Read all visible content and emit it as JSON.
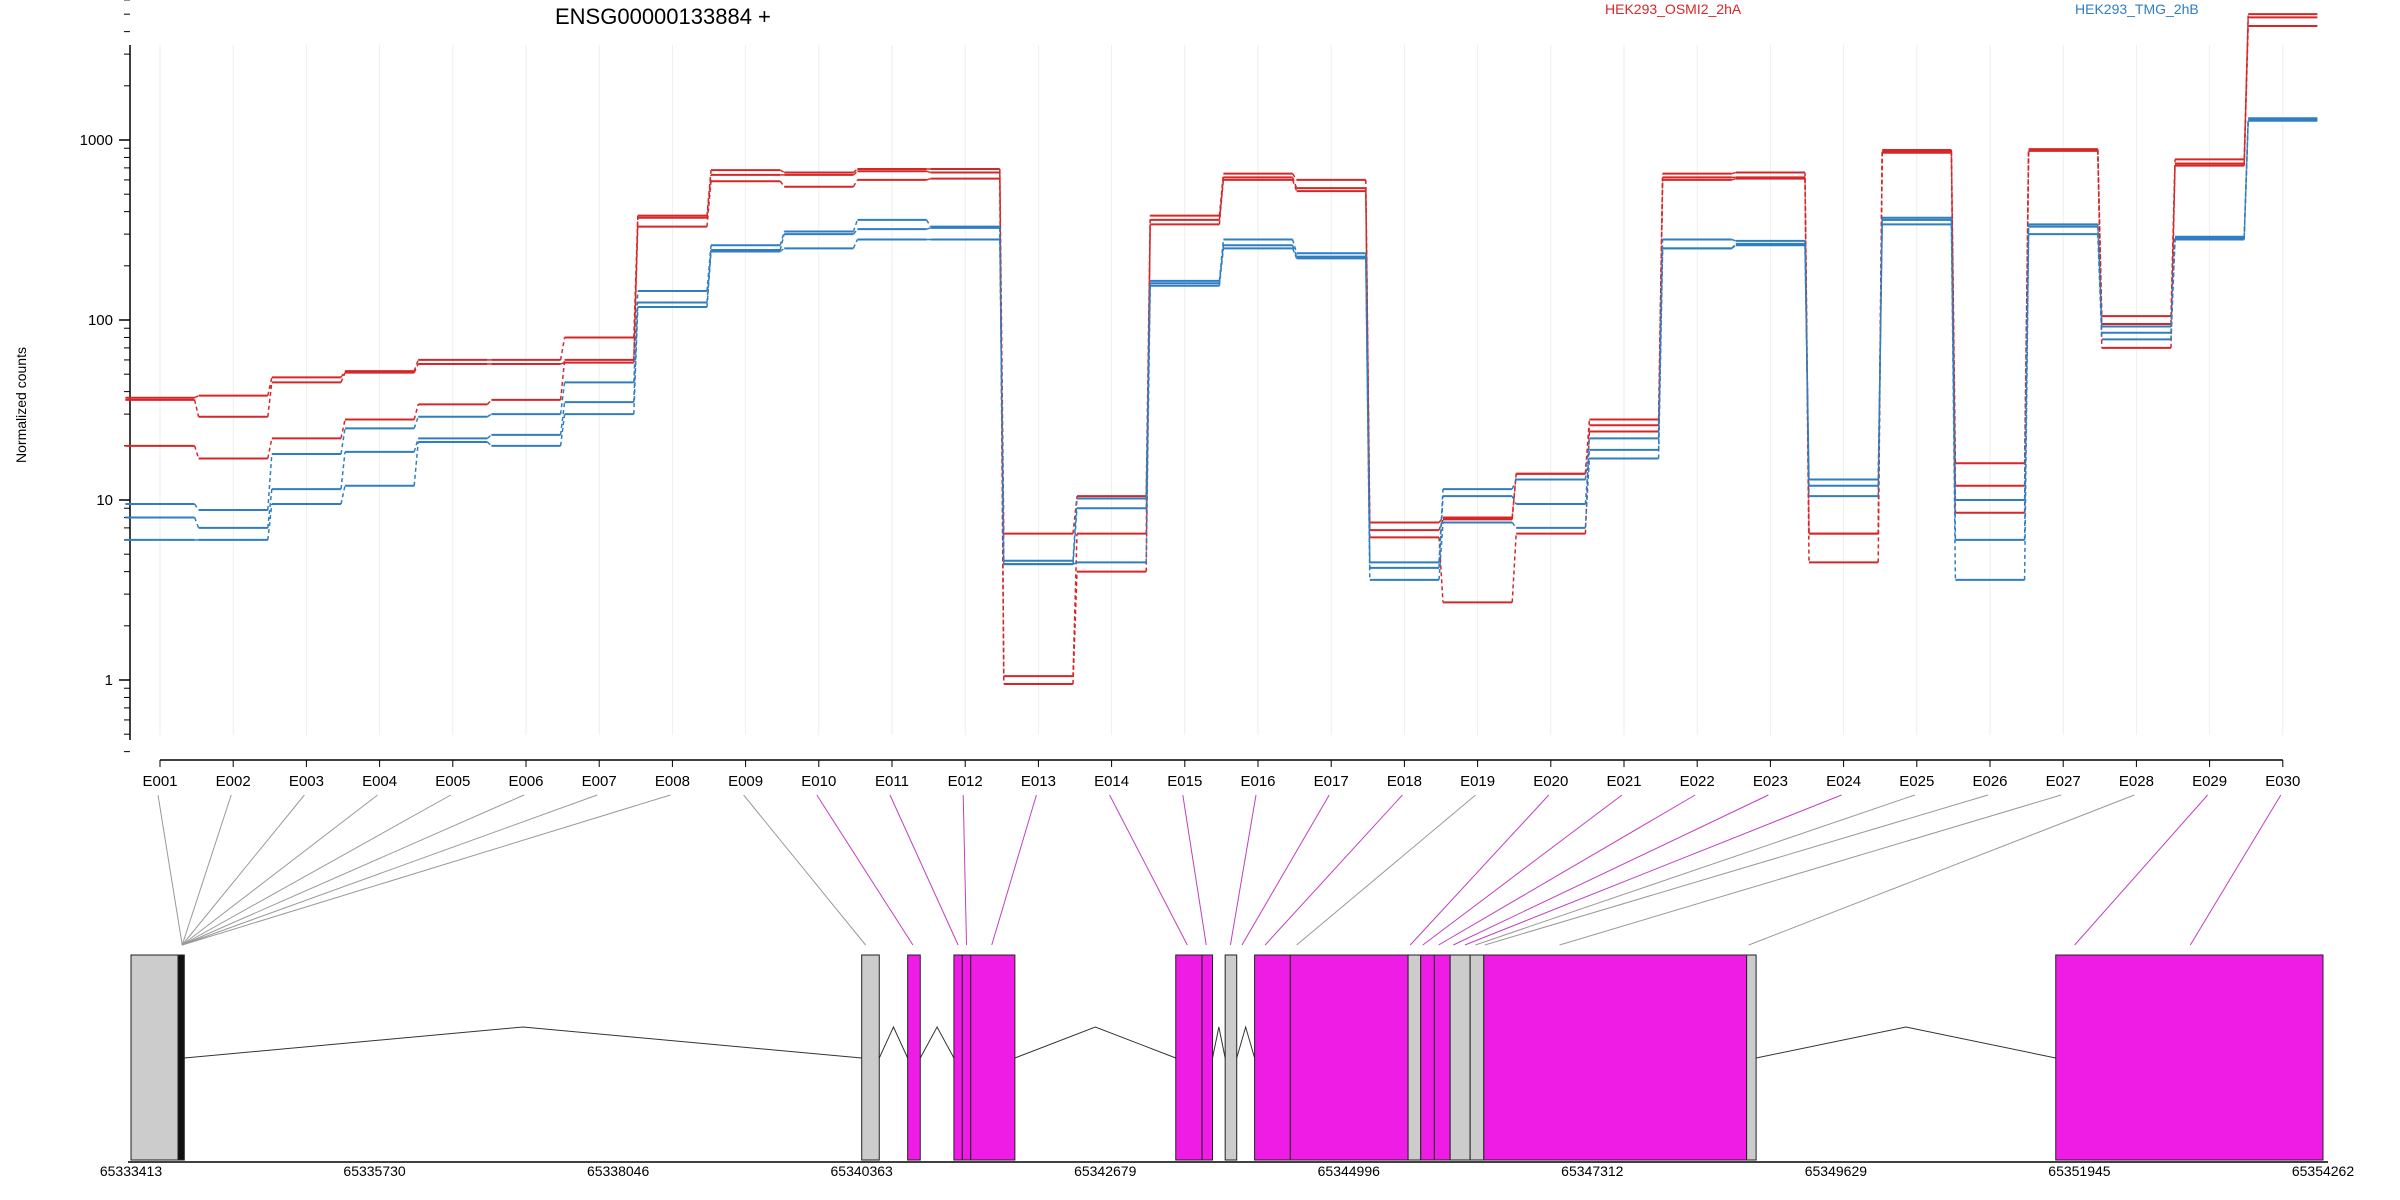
{
  "header": {
    "gene_title": "ENSG00000133884 +",
    "legend": [
      {
        "label": "HEK293_OSMI2_2hA",
        "color": "#d62728"
      },
      {
        "label": "HEK293_TMG_2hB",
        "color": "#2f7ec1"
      }
    ]
  },
  "chart_data": {
    "type": "line",
    "title": "ENSG00000133884 +",
    "ylabel": "Normalized counts",
    "yscale": "log",
    "ylim": [
      0.35,
      8000
    ],
    "yticks": [
      "1",
      "10",
      "100",
      "1000"
    ],
    "categories": [
      "E001",
      "E002",
      "E003",
      "E004",
      "E005",
      "E006",
      "E007",
      "E008",
      "E009",
      "E010",
      "E011",
      "E012",
      "E013",
      "E014",
      "E015",
      "E016",
      "E017",
      "E018",
      "E019",
      "E020",
      "E021",
      "E022",
      "E023",
      "E024",
      "E025",
      "E026",
      "E027",
      "E028",
      "E029",
      "E030"
    ],
    "series": [
      {
        "group": "HEK293_OSMI2_2hA",
        "color": "#d62728",
        "values": [
          37,
          38,
          48,
          52,
          60,
          60,
          80,
          380,
          680,
          660,
          690,
          690,
          6.5,
          10.5,
          380,
          650,
          600,
          7.5,
          8,
          14,
          28,
          650,
          660,
          6.5,
          880,
          16,
          890,
          105,
          780,
          5000
        ]
      },
      {
        "group": "HEK293_OSMI2_2hA",
        "color": "#d62728",
        "values": [
          36,
          29,
          45,
          51,
          57,
          57,
          58,
          330,
          590,
          550,
          600,
          610,
          1.05,
          6.5,
          340,
          620,
          540,
          6.8,
          7.8,
          14,
          26,
          620,
          620,
          6.5,
          860,
          12,
          880,
          95,
          740,
          4800
        ]
      },
      {
        "group": "HEK293_OSMI2_2hA",
        "color": "#d62728",
        "values": [
          20,
          17,
          22,
          28,
          34,
          36,
          60,
          370,
          640,
          640,
          670,
          660,
          0.95,
          4.0,
          360,
          600,
          520,
          6.2,
          2.7,
          6.5,
          24,
          600,
          610,
          4.5,
          850,
          8.5,
          870,
          70,
          720,
          4300
        ]
      },
      {
        "group": "HEK293_TMG_2hB",
        "color": "#2f7ec1",
        "values": [
          9.5,
          8.8,
          18,
          25,
          29,
          30,
          45,
          145,
          260,
          310,
          360,
          330,
          4.6,
          10.2,
          165,
          280,
          235,
          4.5,
          11.5,
          13,
          22,
          280,
          275,
          13,
          370,
          10,
          340,
          92,
          290,
          1320
        ]
      },
      {
        "group": "HEK293_TMG_2hB",
        "color": "#2f7ec1",
        "values": [
          8,
          7,
          11.5,
          18.5,
          22,
          23,
          35,
          125,
          245,
          300,
          320,
          325,
          4.4,
          9.0,
          160,
          260,
          225,
          4.2,
          10.5,
          9.5,
          19,
          250,
          265,
          10.5,
          360,
          6,
          330,
          85,
          285,
          1300
        ]
      },
      {
        "group": "HEK293_TMG_2hB",
        "color": "#2f7ec1",
        "values": [
          6,
          6,
          9.5,
          12,
          21,
          20,
          30,
          118,
          240,
          250,
          280,
          280,
          4.4,
          4.5,
          155,
          250,
          220,
          3.6,
          7.5,
          7,
          17,
          250,
          260,
          12,
          340,
          3.6,
          300,
          78,
          280,
          1280
        ]
      }
    ],
    "coordinate_axis": {
      "tick_labels": [
        "65333413",
        "65335730",
        "65338046",
        "65340363",
        "65342679",
        "65344996",
        "65347312",
        "65349629",
        "65351945",
        "65354262"
      ]
    }
  }
}
